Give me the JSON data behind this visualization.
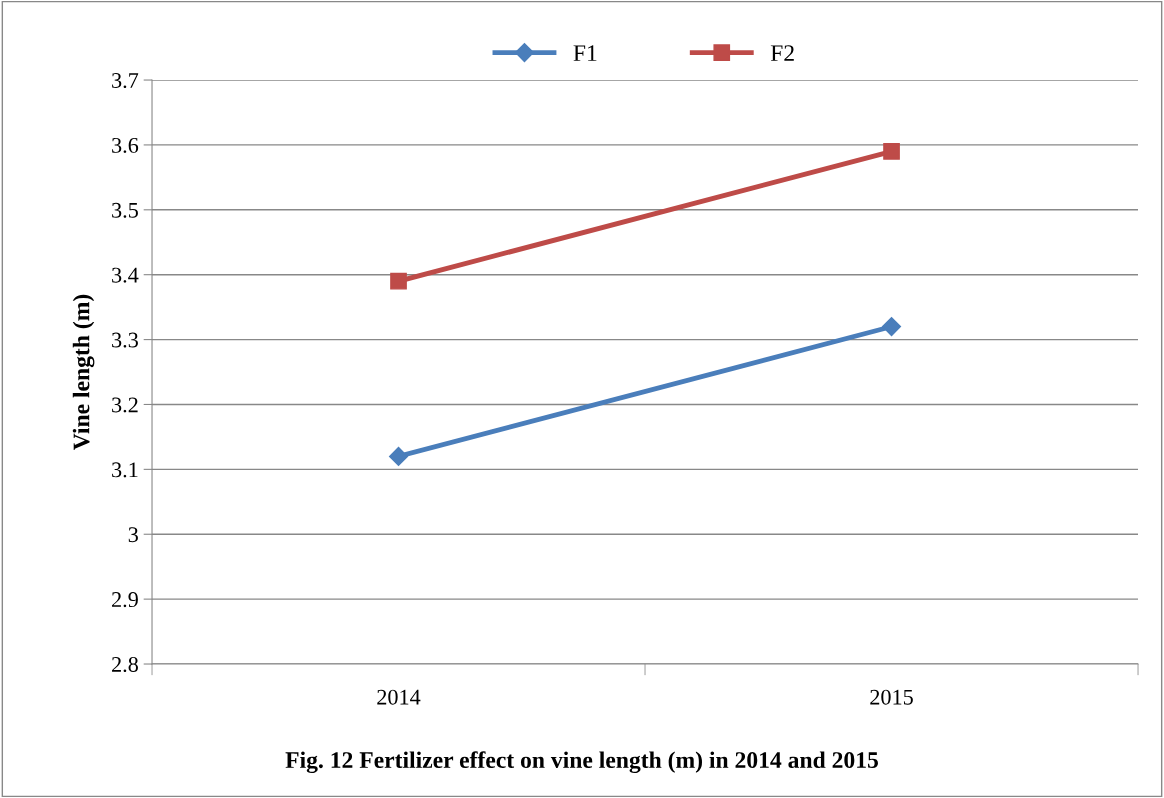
{
  "chart_data": {
    "type": "line",
    "title": "Fig. 12 Fertilizer effect on vine length (m) in 2014 and 2015",
    "ylabel": "Vine length (m)",
    "categories": [
      "2014",
      "2015"
    ],
    "series": [
      {
        "name": "F1",
        "color": "#4a7ebb",
        "values": [
          3.12,
          3.32
        ],
        "marker": "diamond"
      },
      {
        "name": "F2",
        "color": "#be4b48",
        "values": [
          3.39,
          3.59
        ],
        "marker": "square"
      }
    ],
    "ylim": [
      2.8,
      3.7
    ],
    "yticks": [
      {
        "value": 2.8,
        "label": "2.8"
      },
      {
        "value": 2.9,
        "label": "2.9"
      },
      {
        "value": 3.0,
        "label": "3"
      },
      {
        "value": 3.1,
        "label": "3.1"
      },
      {
        "value": 3.2,
        "label": "3.2"
      },
      {
        "value": 3.3,
        "label": "3.3"
      },
      {
        "value": 3.4,
        "label": "3.4"
      },
      {
        "value": 3.5,
        "label": "3.5"
      },
      {
        "value": 3.6,
        "label": "3.6"
      },
      {
        "value": 3.7,
        "label": "3.7"
      }
    ],
    "grid": "y",
    "legend": "top",
    "line_style": "solid"
  }
}
